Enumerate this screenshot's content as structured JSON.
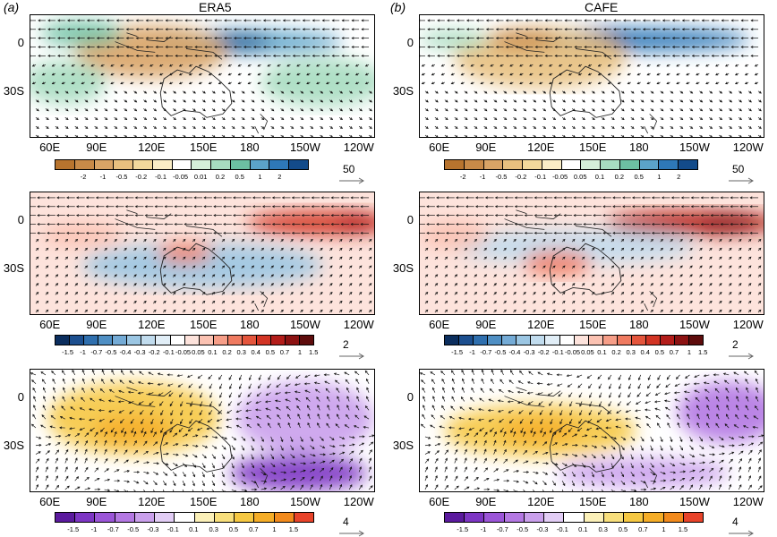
{
  "columns": [
    {
      "letter": "(a)",
      "title": "ERA5"
    },
    {
      "letter": "(b)",
      "title": "CAFE"
    }
  ],
  "lat_labels": [
    "0",
    "30S"
  ],
  "lon_labels": [
    "60E",
    "90E",
    "120E",
    "150E",
    "180",
    "150W",
    "120W"
  ],
  "rows": [
    {
      "colorbar_labels": [
        "-2",
        "-1",
        "-0.5",
        "-0.2",
        "-0.1",
        "-0.05",
        "0.01",
        "0.2",
        "0.5",
        "1",
        "2"
      ],
      "colorbar_labels_b": [
        "-2",
        "-1",
        "-0.5",
        "-0.2",
        "-0.1",
        "-0.05",
        "0.05",
        "0.1",
        "0.2",
        "0.5",
        "1",
        "2"
      ],
      "colors": [
        "#b8742e",
        "#c88a48",
        "#d9a466",
        "#e8c07f",
        "#f2d99c",
        "#faedc6",
        "#ffffff",
        "#d5efd9",
        "#a7dcc0",
        "#6cc0a2",
        "#5ba3c9",
        "#2e78b8",
        "#134b8a"
      ],
      "reference_vector": "50"
    },
    {
      "colorbar_labels": [
        "-1.5",
        "-1",
        "-0.7",
        "-0.5",
        "-0.4",
        "-0.3",
        "-0.2",
        "-0.1",
        "-0.05",
        "0.05",
        "0.1",
        "0.2",
        "0.3",
        "0.4",
        "0.5",
        "0.7",
        "1",
        "1.5"
      ],
      "colors": [
        "#0b2e5e",
        "#1c4f8f",
        "#2f6fae",
        "#4f8fc4",
        "#74abd6",
        "#9bc6e3",
        "#c1dcee",
        "#e1eef7",
        "#ffffff",
        "#fde3dc",
        "#fbc2b2",
        "#f69e88",
        "#ef7a60",
        "#e4553c",
        "#d23424",
        "#b31d1a",
        "#8c1212",
        "#5e0c0c"
      ],
      "reference_vector": "2"
    },
    {
      "colorbar_labels": [
        "-1.5",
        "-1",
        "-0.7",
        "-0.5",
        "-0.3",
        "-0.1",
        "0.1",
        "0.3",
        "0.5",
        "0.7",
        "1",
        "1.5"
      ],
      "colors": [
        "#5b1a9e",
        "#7d35c4",
        "#9b55d8",
        "#b478e3",
        "#caa0ec",
        "#e2cdf5",
        "#ffffff",
        "#fbf0b8",
        "#f8df7c",
        "#f6c842",
        "#f5ad27",
        "#f28a1c",
        "#e8432a"
      ],
      "reference_vector": "4"
    }
  ]
}
